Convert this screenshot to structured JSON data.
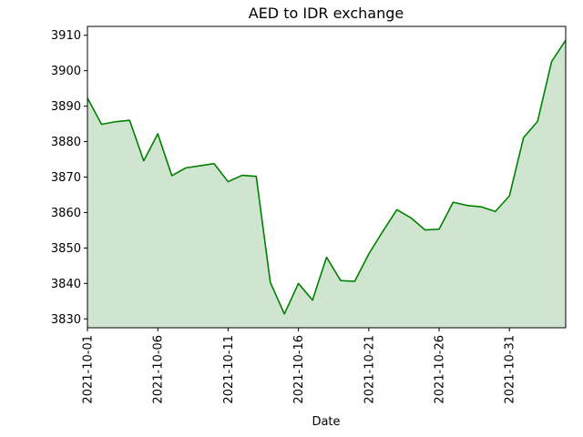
{
  "chart_data": {
    "type": "area",
    "title": "AED to IDR exchange",
    "xlabel": "Date",
    "ylabel": "",
    "x": [
      "2021-10-01",
      "2021-10-02",
      "2021-10-03",
      "2021-10-04",
      "2021-10-05",
      "2021-10-06",
      "2021-10-07",
      "2021-10-08",
      "2021-10-09",
      "2021-10-10",
      "2021-10-11",
      "2021-10-12",
      "2021-10-13",
      "2021-10-14",
      "2021-10-15",
      "2021-10-16",
      "2021-10-17",
      "2021-10-18",
      "2021-10-19",
      "2021-10-20",
      "2021-10-21",
      "2021-10-22",
      "2021-10-23",
      "2021-10-24",
      "2021-10-25",
      "2021-10-26",
      "2021-10-27",
      "2021-10-28",
      "2021-10-29",
      "2021-10-30",
      "2021-10-31",
      "2021-11-01",
      "2021-11-02",
      "2021-11-03",
      "2021-11-04"
    ],
    "values": [
      3892.3,
      3884.9,
      3885.6,
      3886.0,
      3874.6,
      3882.2,
      3870.4,
      3872.6,
      3873.2,
      3873.8,
      3868.7,
      3870.5,
      3870.2,
      3840.3,
      3831.4,
      3840.0,
      3835.3,
      3847.4,
      3840.8,
      3840.6,
      3848.3,
      3854.7,
      3860.8,
      3858.5,
      3855.1,
      3855.3,
      3862.9,
      3862.0,
      3861.6,
      3860.3,
      3864.7,
      3881.1,
      3885.7,
      3902.6,
      3908.6
    ],
    "xticks": [
      "2021-10-01",
      "2021-10-06",
      "2021-10-11",
      "2021-10-16",
      "2021-10-21",
      "2021-10-26",
      "2021-10-31"
    ],
    "yticks": [
      3830,
      3840,
      3850,
      3860,
      3870,
      3880,
      3890,
      3900,
      3910
    ],
    "ylim": [
      3827.5,
      3912.5
    ],
    "grid": false,
    "line_color": "#008000",
    "fill_color": "#cfe5cf"
  }
}
